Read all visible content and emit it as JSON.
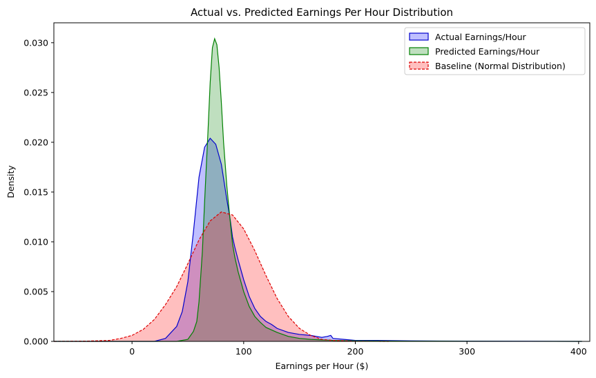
{
  "chart_data": {
    "type": "area",
    "title": "Actual vs. Predicted Earnings Per Hour Distribution",
    "xlabel": "Earnings per Hour ($)",
    "ylabel": "Density",
    "xlim": [
      -70,
      410
    ],
    "ylim": [
      0,
      0.032
    ],
    "xticks": [
      0,
      100,
      200,
      300,
      400
    ],
    "yticks": [
      0.0,
      0.005,
      0.01,
      0.015,
      0.02,
      0.025,
      0.03
    ],
    "ytick_labels": [
      "0.000",
      "0.005",
      "0.010",
      "0.015",
      "0.020",
      "0.025",
      "0.030"
    ],
    "grid": false,
    "legend_position": "top-right",
    "series": [
      {
        "name": "Actual Earnings/Hour",
        "color": "#0000cc",
        "fill": "#0000ff",
        "line_style": "solid",
        "x": [
          -70,
          20,
          30,
          40,
          45,
          50,
          55,
          60,
          65,
          70,
          75,
          80,
          85,
          88,
          90,
          92,
          95,
          100,
          105,
          110,
          115,
          120,
          125,
          130,
          140,
          150,
          160,
          170,
          175,
          178,
          180,
          190,
          200,
          220,
          250,
          300,
          350,
          403
        ],
        "y": [
          0,
          0,
          0.0003,
          0.0015,
          0.003,
          0.006,
          0.011,
          0.0165,
          0.0195,
          0.0204,
          0.0198,
          0.0178,
          0.0142,
          0.0122,
          0.0105,
          0.0095,
          0.0082,
          0.0062,
          0.0045,
          0.0033,
          0.0025,
          0.002,
          0.0017,
          0.0013,
          0.0009,
          0.0007,
          0.0006,
          0.0004,
          0.0005,
          0.0006,
          0.0003,
          0.0002,
          0.0001,
          0.0001,
          5e-05,
          3e-05,
          2e-05,
          0
        ]
      },
      {
        "name": "Predicted Earnings/Hour",
        "color": "#008000",
        "fill": "#008000",
        "line_style": "solid",
        "x": [
          -70,
          40,
          50,
          55,
          58,
          60,
          63,
          65,
          68,
          70,
          72,
          74,
          76,
          78,
          80,
          82,
          85,
          88,
          90,
          92,
          95,
          100,
          105,
          110,
          115,
          120,
          130,
          140,
          150,
          160,
          180,
          200,
          250,
          300,
          403
        ],
        "y": [
          0,
          0,
          0.0002,
          0.001,
          0.002,
          0.004,
          0.009,
          0.014,
          0.021,
          0.026,
          0.0295,
          0.0304,
          0.0298,
          0.0275,
          0.024,
          0.02,
          0.0155,
          0.012,
          0.0098,
          0.0085,
          0.007,
          0.005,
          0.0035,
          0.0025,
          0.0019,
          0.0014,
          0.0009,
          0.0005,
          0.0003,
          0.0002,
          0.0001,
          5e-05,
          2e-05,
          1e-05,
          0
        ]
      },
      {
        "name": "Baseline (Normal Distribution)",
        "color": "#dd0000",
        "fill": "#ff0000",
        "line_style": "dashed",
        "x": [
          -70,
          -40,
          -20,
          -10,
          0,
          10,
          20,
          30,
          40,
          50,
          60,
          70,
          80,
          90,
          100,
          110,
          120,
          130,
          140,
          150,
          160,
          170,
          180,
          200,
          230
        ],
        "y": [
          0,
          3e-05,
          0.0001,
          0.0003,
          0.0006,
          0.0012,
          0.0022,
          0.0037,
          0.0055,
          0.0078,
          0.0102,
          0.0121,
          0.013,
          0.0127,
          0.0113,
          0.0091,
          0.0066,
          0.0043,
          0.0025,
          0.0013,
          0.0006,
          0.0002,
          0.0001,
          1e-05,
          0
        ]
      }
    ]
  }
}
